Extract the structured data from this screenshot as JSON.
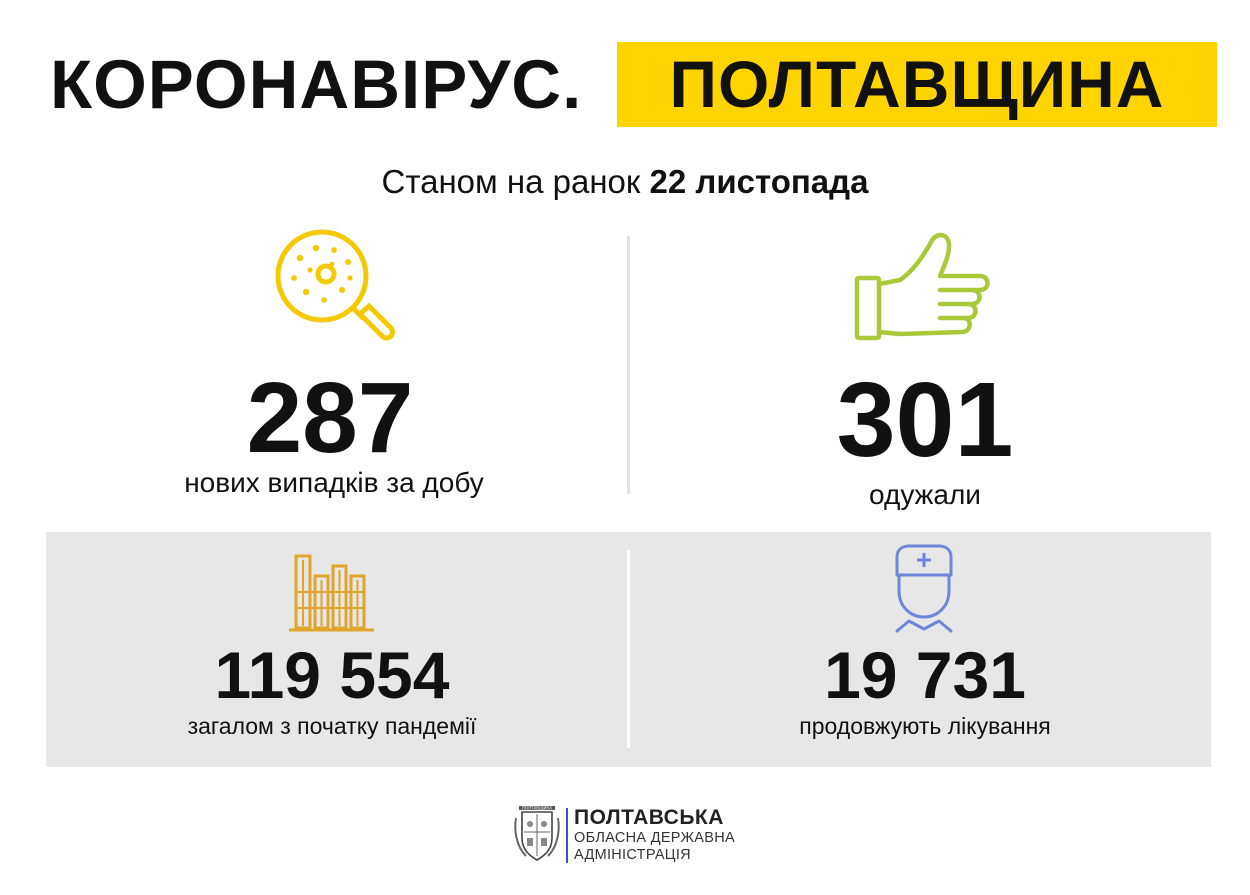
{
  "header": {
    "title_left": "КОРОНАВІРУС.",
    "title_right": "ПОЛТАВЩИНА",
    "highlight_color": "#FFD400"
  },
  "subtitle": {
    "prefix": "Станом на ранок",
    "date": "22 листопада"
  },
  "stats": {
    "new_cases": {
      "value": "287",
      "label": "нових випадків за добу",
      "icon": "virus-magnifier-icon",
      "icon_color": "#F5C800"
    },
    "recovered": {
      "value": "301",
      "label": "одужали",
      "icon": "thumbs-up-icon",
      "icon_color": "#A9C93A"
    },
    "total": {
      "value": "119 554",
      "label": "загалом з початку пандемії",
      "icon": "bar-chart-icon",
      "icon_color": "#E0A62C"
    },
    "in_treatment": {
      "value": "19 731",
      "label": "продовжують лікування",
      "icon": "doctor-icon",
      "icon_color": "#6E86D8"
    }
  },
  "footer": {
    "org_line1": "ПОЛТАВСЬКА",
    "org_line2": "ОБЛАСНА ДЕРЖАВНА",
    "org_line3": "АДМІНІСТРАЦІЯ",
    "crest_text": "ПОЛТАВЩИНА",
    "accent_blue": "#2d56c8",
    "accent_yellow": "#FFD400"
  }
}
